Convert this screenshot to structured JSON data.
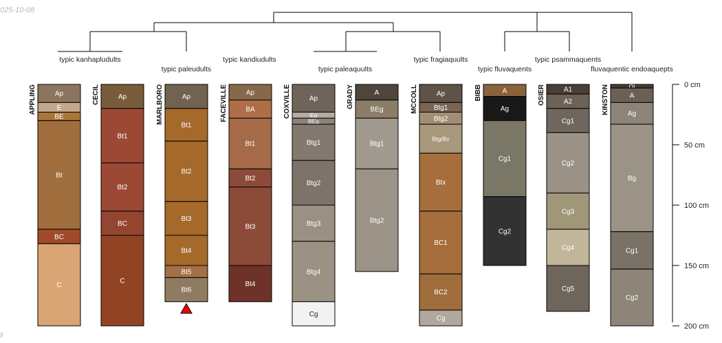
{
  "header": {
    "date": "025-10-08",
    "corner_mark": "ll"
  },
  "depth_axis": {
    "max_cm": 200,
    "ticks": [
      {
        "value": 0,
        "label": "0 cm"
      },
      {
        "value": 50,
        "label": "50 cm"
      },
      {
        "value": 100,
        "label": "100 cm"
      },
      {
        "value": 150,
        "label": "150 cm"
      },
      {
        "value": 200,
        "label": "200 cm"
      }
    ]
  },
  "taxonomy_labels": [
    "typic kanhapludults",
    "typic paleudults",
    "typic kandiudults",
    "typic paleaquults",
    "typic fragiaquults",
    "typic fluvaquents",
    "typic psammaquents",
    "fluvaquentic endoaquepts"
  ],
  "profiles": [
    {
      "name": "APPLING",
      "horizons": [
        {
          "name": "Ap",
          "top": 0,
          "bottom": 15,
          "color": "#8c755e"
        },
        {
          "name": "E",
          "top": 15,
          "bottom": 23,
          "color": "#c3a78b"
        },
        {
          "name": "BE",
          "top": 23,
          "bottom": 30,
          "color": "#aa7538"
        },
        {
          "name": "Bt",
          "top": 30,
          "bottom": 120,
          "color": "#a06e3d"
        },
        {
          "name": "BC",
          "top": 120,
          "bottom": 132,
          "color": "#a04a2a"
        },
        {
          "name": "C",
          "top": 132,
          "bottom": 200,
          "color": "#d9a574"
        }
      ]
    },
    {
      "name": "CECIL",
      "horizons": [
        {
          "name": "Ap",
          "top": 0,
          "bottom": 20,
          "color": "#785c3a"
        },
        {
          "name": "Bt1",
          "top": 20,
          "bottom": 65,
          "color": "#9b4935"
        },
        {
          "name": "Bt2",
          "top": 65,
          "bottom": 105,
          "color": "#9b4935"
        },
        {
          "name": "BC",
          "top": 105,
          "bottom": 125,
          "color": "#934530"
        },
        {
          "name": "C",
          "top": 125,
          "bottom": 200,
          "color": "#914423"
        }
      ]
    },
    {
      "name": "MARLBORO",
      "horizons": [
        {
          "name": "Ap",
          "top": 0,
          "bottom": 20,
          "color": "#716251"
        },
        {
          "name": "Bt1",
          "top": 20,
          "bottom": 47,
          "color": "#a5692a"
        },
        {
          "name": "Bt2",
          "top": 47,
          "bottom": 97,
          "color": "#a5692a"
        },
        {
          "name": "Bt3",
          "top": 97,
          "bottom": 125,
          "color": "#a5692a"
        },
        {
          "name": "Bt4",
          "top": 125,
          "bottom": 150,
          "color": "#a5692a"
        },
        {
          "name": "Bt5",
          "top": 150,
          "bottom": 160,
          "color": "#a36f45"
        },
        {
          "name": "Bt6",
          "top": 160,
          "bottom": 180,
          "color": "#8f7b61"
        }
      ],
      "marker": "triangle"
    },
    {
      "name": "FACEVILLE",
      "horizons": [
        {
          "name": "Ap",
          "top": 0,
          "bottom": 13,
          "color": "#86684b"
        },
        {
          "name": "BA",
          "top": 13,
          "bottom": 28,
          "color": "#b06e48"
        },
        {
          "name": "Bt1",
          "top": 28,
          "bottom": 70,
          "color": "#a56a47"
        },
        {
          "name": "Bt2",
          "top": 70,
          "bottom": 85,
          "color": "#8c4a38"
        },
        {
          "name": "Bt3",
          "top": 85,
          "bottom": 150,
          "color": "#8c4a38"
        },
        {
          "name": "Bt4",
          "top": 150,
          "bottom": 180,
          "color": "#6e3228"
        }
      ]
    },
    {
      "name": "COXVILLE",
      "horizons": [
        {
          "name": "Ap",
          "top": 0,
          "bottom": 23,
          "color": "#6e6459"
        },
        {
          "name": "Eg",
          "top": 23,
          "bottom": 28,
          "color": "#b3aca3"
        },
        {
          "name": "BEg",
          "top": 28,
          "bottom": 33,
          "color": "#8d837a"
        },
        {
          "name": "Btg1",
          "top": 33,
          "bottom": 63,
          "color": "#84796e"
        },
        {
          "name": "Btg2",
          "top": 63,
          "bottom": 100,
          "color": "#7d7369"
        },
        {
          "name": "Btg3",
          "top": 100,
          "bottom": 130,
          "color": "#9a9084"
        },
        {
          "name": "Btg4",
          "top": 130,
          "bottom": 180,
          "color": "#9b9284"
        },
        {
          "name": "Cg",
          "top": 180,
          "bottom": 200,
          "color": "#f2f2f2"
        }
      ]
    },
    {
      "name": "GRADY",
      "horizons": [
        {
          "name": "A",
          "top": 0,
          "bottom": 13,
          "color": "#4e453c"
        },
        {
          "name": "BEg",
          "top": 13,
          "bottom": 28,
          "color": "#8b7d68"
        },
        {
          "name": "Btg1",
          "top": 28,
          "bottom": 70,
          "color": "#a39a8f"
        },
        {
          "name": "Btg2",
          "top": 70,
          "bottom": 155,
          "color": "#9b9387"
        }
      ]
    },
    {
      "name": "MCCOLL",
      "horizons": [
        {
          "name": "Ap",
          "top": 0,
          "bottom": 15,
          "color": "#5f5246"
        },
        {
          "name": "Btg1",
          "top": 15,
          "bottom": 23,
          "color": "#7a6553"
        },
        {
          "name": "Btg2",
          "top": 23,
          "bottom": 33,
          "color": "#a38e75"
        },
        {
          "name": "Btg/Bx",
          "top": 33,
          "bottom": 57,
          "color": "#a8987c"
        },
        {
          "name": "Btx",
          "top": 57,
          "bottom": 105,
          "color": "#a56e3c"
        },
        {
          "name": "BC1",
          "top": 105,
          "bottom": 157,
          "color": "#a56e3c"
        },
        {
          "name": "BC2",
          "top": 157,
          "bottom": 187,
          "color": "#a06d3c"
        },
        {
          "name": "Cg",
          "top": 187,
          "bottom": 200,
          "color": "#b0a79d"
        }
      ]
    },
    {
      "name": "BIBB",
      "horizons": [
        {
          "name": "A",
          "top": 0,
          "bottom": 10,
          "color": "#8a623c"
        },
        {
          "name": "Ag",
          "top": 10,
          "bottom": 30,
          "color": "#191919"
        },
        {
          "name": "Cg1",
          "top": 30,
          "bottom": 93,
          "color": "#7b7767"
        },
        {
          "name": "Cg2",
          "top": 93,
          "bottom": 150,
          "color": "#323232"
        }
      ]
    },
    {
      "name": "OSIER",
      "horizons": [
        {
          "name": "A1",
          "top": 0,
          "bottom": 8,
          "color": "#4a3f37"
        },
        {
          "name": "A2",
          "top": 8,
          "bottom": 20,
          "color": "#6c6258"
        },
        {
          "name": "Cg1",
          "top": 20,
          "bottom": 40,
          "color": "#6f665d"
        },
        {
          "name": "Cg2",
          "top": 40,
          "bottom": 90,
          "color": "#9a9287"
        },
        {
          "name": "Cg3",
          "top": 90,
          "bottom": 120,
          "color": "#a09779"
        },
        {
          "name": "Cg4",
          "top": 120,
          "bottom": 150,
          "color": "#c1b699"
        },
        {
          "name": "Cg5",
          "top": 150,
          "bottom": 188,
          "color": "#6e655b"
        }
      ]
    },
    {
      "name": "KINSTON",
      "horizons": [
        {
          "name": "Oi",
          "top": 0,
          "bottom": 3,
          "color": "#4a3e30"
        },
        {
          "name": "A",
          "top": 3,
          "bottom": 15,
          "color": "#6a6056"
        },
        {
          "name": "Ag",
          "top": 15,
          "bottom": 33,
          "color": "#8c8479"
        },
        {
          "name": "Bg",
          "top": 33,
          "bottom": 122,
          "color": "#9a9386"
        },
        {
          "name": "Cg1",
          "top": 122,
          "bottom": 153,
          "color": "#7a7167"
        },
        {
          "name": "Cg2",
          "top": 153,
          "bottom": 200,
          "color": "#8e8579"
        }
      ]
    }
  ]
}
